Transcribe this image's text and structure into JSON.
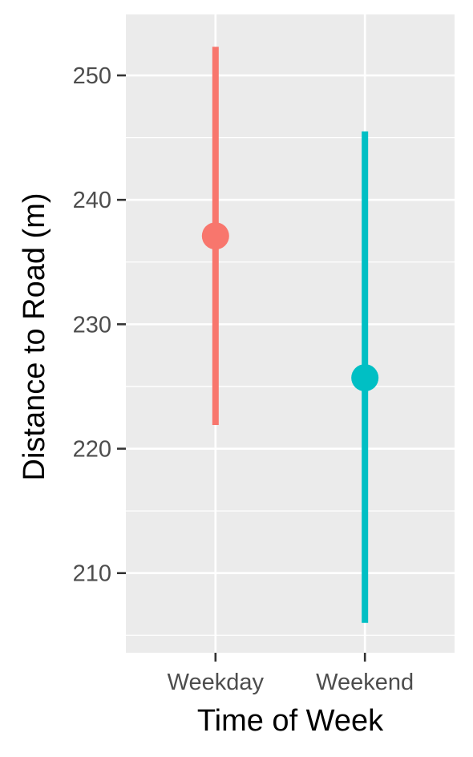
{
  "chart_data": {
    "type": "pointrange",
    "xlabel": "Time of Week",
    "ylabel": "Distance to Road (m)",
    "categories": [
      "Weekday",
      "Weekend"
    ],
    "points": [
      {
        "category": "Weekday",
        "y": 237.1,
        "ymin": 221.9,
        "ymax": 252.3,
        "color": "#F8766D"
      },
      {
        "category": "Weekend",
        "y": 225.7,
        "ymin": 206.0,
        "ymax": 245.5,
        "color": "#00BFC4"
      }
    ],
    "yticks": [
      210,
      220,
      230,
      240,
      250
    ],
    "ylim": [
      203.6,
      254.9
    ],
    "grid": true,
    "panel_background": "#EBEBEB",
    "legend": "none"
  }
}
